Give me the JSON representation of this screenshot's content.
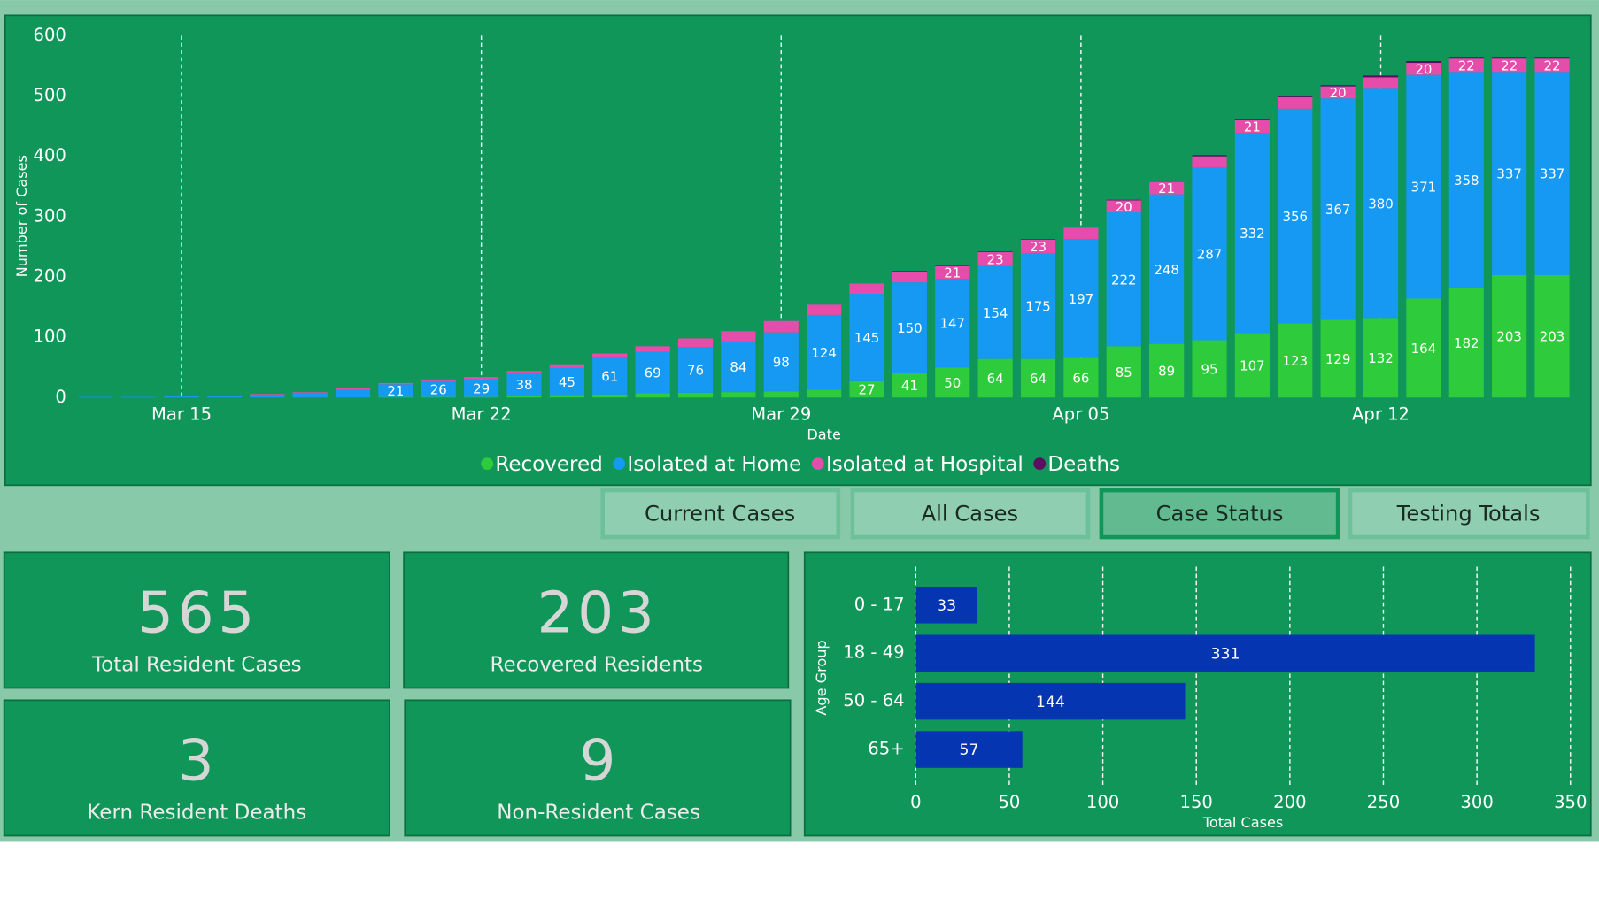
{
  "chart_data": [
    {
      "type": "bar",
      "stacked": true,
      "x_label": "Date",
      "y_label": "Number of Cases",
      "categories": [
        null,
        null,
        "Mar 15",
        null,
        null,
        null,
        null,
        null,
        null,
        "Mar 22",
        null,
        null,
        null,
        null,
        null,
        null,
        "Mar 29",
        null,
        null,
        null,
        null,
        null,
        null,
        "Apr 05",
        null,
        null,
        null,
        null,
        null,
        null,
        "Apr 12",
        null,
        null,
        null,
        null
      ],
      "series": [
        {
          "name": "Recovered",
          "color": "#2ecc3c",
          "values": [
            0,
            0,
            0,
            0,
            0,
            0,
            0,
            1,
            1,
            1,
            3,
            4,
            5,
            7,
            8,
            9,
            10,
            13,
            27,
            41,
            50,
            64,
            64,
            66,
            85,
            89,
            95,
            107,
            123,
            129,
            132,
            164,
            182,
            203,
            203
          ]
        },
        {
          "name": "Isolated at Home",
          "color": "#1599f2",
          "values": [
            1,
            1,
            2,
            3,
            5,
            8,
            13,
            21,
            26,
            29,
            38,
            45,
            61,
            69,
            76,
            84,
            98,
            124,
            145,
            150,
            147,
            154,
            175,
            197,
            222,
            248,
            287,
            332,
            356,
            367,
            380,
            371,
            358,
            337,
            337
          ]
        },
        {
          "name": "Isolated at Hospital",
          "color": "#e64caa",
          "values": [
            0,
            0,
            0,
            0,
            1,
            1,
            2,
            2,
            3,
            4,
            3,
            6,
            7,
            9,
            14,
            17,
            19,
            17,
            17,
            18,
            21,
            23,
            23,
            19,
            20,
            21,
            18,
            21,
            19,
            20,
            19,
            20,
            22,
            22,
            22
          ]
        },
        {
          "name": "Deaths",
          "color": "#5e0c62",
          "values": [
            0,
            0,
            0,
            0,
            0,
            0,
            0,
            0,
            0,
            0,
            0,
            0,
            0,
            0,
            0,
            0,
            0,
            0,
            0,
            1,
            1,
            1,
            1,
            1,
            1,
            1,
            2,
            2,
            2,
            2,
            3,
            3,
            3,
            3,
            3
          ]
        }
      ],
      "ylim": [
        0,
        600
      ],
      "yticks": [
        0,
        100,
        200,
        300,
        400,
        500,
        600
      ],
      "legend": "bottom"
    },
    {
      "type": "bar",
      "orientation": "horizontal",
      "color": "#0535b0",
      "x_label": "Total Cases",
      "y_label": "Age Group",
      "categories": [
        "0 - 17",
        "18 - 49",
        "50 - 64",
        "65+"
      ],
      "values": [
        33,
        331,
        144,
        57
      ],
      "xlim": [
        0,
        350
      ],
      "xticks": [
        0,
        50,
        100,
        150,
        200,
        250,
        300,
        350
      ],
      "grid": true
    }
  ],
  "cards": [
    {
      "value": 565,
      "label": "Total Resident Cases"
    },
    {
      "value": 203,
      "label": "Recovered Residents"
    },
    {
      "value": 3,
      "label": "Kern Resident Deaths"
    },
    {
      "value": 9,
      "label": "Non-Resident Cases"
    }
  ],
  "buttons": [
    "Current Cases",
    "All Cases",
    "Case Status",
    "Testing Totals"
  ]
}
